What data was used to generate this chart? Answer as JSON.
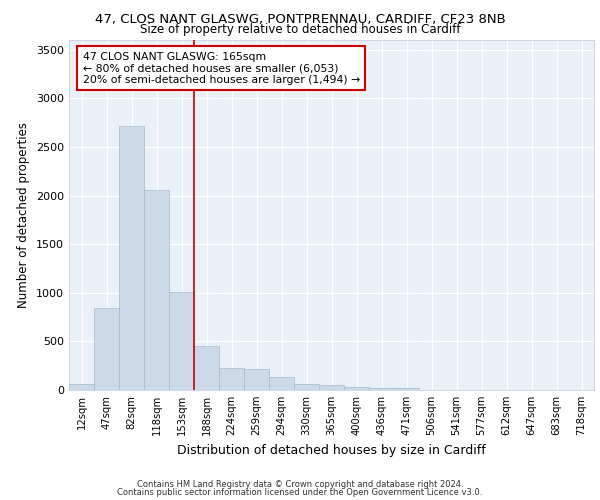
{
  "title1": "47, CLOS NANT GLASWG, PONTPRENNAU, CARDIFF, CF23 8NB",
  "title2": "Size of property relative to detached houses in Cardiff",
  "xlabel": "Distribution of detached houses by size in Cardiff",
  "ylabel": "Number of detached properties",
  "categories": [
    "12sqm",
    "47sqm",
    "82sqm",
    "118sqm",
    "153sqm",
    "188sqm",
    "224sqm",
    "259sqm",
    "294sqm",
    "330sqm",
    "365sqm",
    "400sqm",
    "436sqm",
    "471sqm",
    "506sqm",
    "541sqm",
    "577sqm",
    "612sqm",
    "647sqm",
    "683sqm",
    "718sqm"
  ],
  "values": [
    65,
    840,
    2720,
    2060,
    1010,
    455,
    230,
    220,
    130,
    65,
    55,
    35,
    25,
    20,
    5,
    5,
    5,
    5,
    5,
    5,
    5
  ],
  "bar_color": "#ccd9e8",
  "bar_edge_color": "#aabbcc",
  "vline_color": "#cc0000",
  "annotation_text": "47 CLOS NANT GLASWG: 165sqm\n← 80% of detached houses are smaller (6,053)\n20% of semi-detached houses are larger (1,494) →",
  "annotation_box_color": "#ffffff",
  "annotation_box_edge_color": "#cc0000",
  "ylim": [
    0,
    3600
  ],
  "yticks": [
    0,
    500,
    1000,
    1500,
    2000,
    2500,
    3000,
    3500
  ],
  "background_color": "#eaf0f8",
  "footer1": "Contains HM Land Registry data © Crown copyright and database right 2024.",
  "footer2": "Contains public sector information licensed under the Open Government Licence v3.0."
}
